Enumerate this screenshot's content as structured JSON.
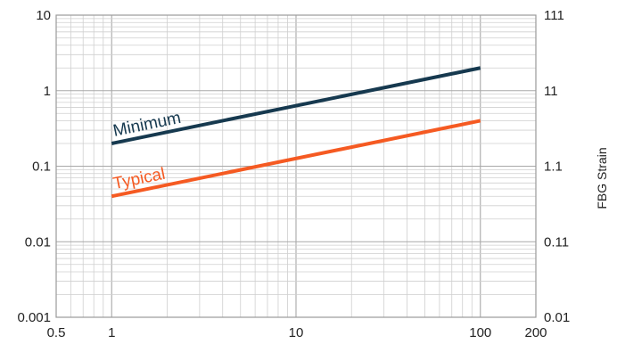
{
  "chart_data": {
    "type": "line",
    "xscale": "log",
    "yscale": "log",
    "xlim": [
      0.5,
      200
    ],
    "ylim": [
      0.001,
      10
    ],
    "y2lim": [
      0.01,
      111
    ],
    "x_ticks": [
      {
        "value": 0.5,
        "label": "0.5"
      },
      {
        "value": 1,
        "label": "1"
      },
      {
        "value": 10,
        "label": "10"
      },
      {
        "value": 100,
        "label": "100"
      },
      {
        "value": 200,
        "label": "200"
      }
    ],
    "y_ticks": [
      {
        "value": 10,
        "label": "10"
      },
      {
        "value": 1,
        "label": "1"
      },
      {
        "value": 0.1,
        "label": "0.1"
      },
      {
        "value": 0.01,
        "label": "0.01"
      },
      {
        "value": 0.001,
        "label": "0.001"
      }
    ],
    "y2_ticks": [
      {
        "frac": 1.0,
        "label": "111"
      },
      {
        "frac": 0.75,
        "label": "11"
      },
      {
        "frac": 0.5,
        "label": "1.1"
      },
      {
        "frac": 0.25,
        "label": "0.11"
      },
      {
        "frac": 0.0,
        "label": "0.01"
      }
    ],
    "y2label": "FBG Strain",
    "grid": true,
    "series": [
      {
        "name": "Minimum",
        "color": "#16394f",
        "x": [
          1,
          100
        ],
        "y": [
          0.2,
          2.0
        ]
      },
      {
        "name": "Typical",
        "color": "#f55a22",
        "x": [
          1,
          100
        ],
        "y": [
          0.04,
          0.4
        ]
      }
    ]
  }
}
